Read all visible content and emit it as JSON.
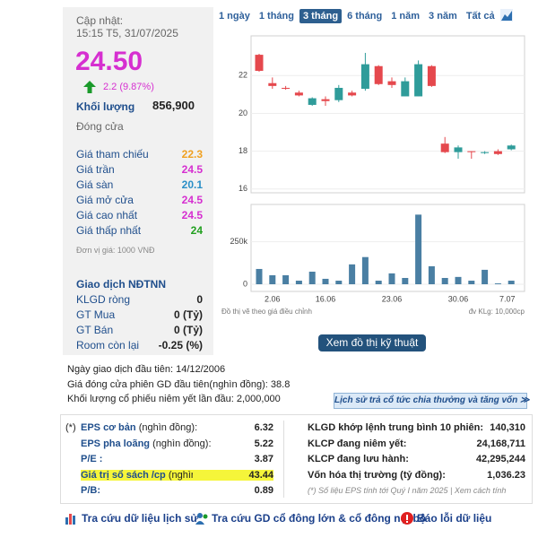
{
  "quote": {
    "updated_label": "Cập nhật:",
    "updated_time": "15:15 T5, 31/07/2025",
    "price": "24.50",
    "change": "2.2 (9.87%)",
    "volume_label": "Khối lượng",
    "volume": "856,900",
    "status": "Đóng cửa",
    "price_rows": [
      {
        "label": "Giá tham chiếu",
        "value": "22.3",
        "color": "#f0a020"
      },
      {
        "label": "Giá trần",
        "value": "24.5",
        "color": "#d62fd0"
      },
      {
        "label": "Giá sàn",
        "value": "20.1",
        "color": "#2a8fc7"
      },
      {
        "label": "Giá mở cửa",
        "value": "24.5",
        "color": "#d62fd0"
      },
      {
        "label": "Giá cao nhất",
        "value": "24.5",
        "color": "#d62fd0"
      },
      {
        "label": "Giá thấp nhất",
        "value": "24",
        "color": "#22a020"
      }
    ],
    "unit_note": "Đơn vị giá: 1000 VNĐ",
    "foreign_title": "Giao dịch NĐTNN",
    "foreign_rows": [
      {
        "label": "KLGD ròng",
        "value": "0"
      },
      {
        "label": "GT Mua",
        "value": "0 (Tỷ)"
      },
      {
        "label": "GT Bán",
        "value": "0 (Tỷ)"
      },
      {
        "label": "Room còn lại",
        "value": "-0.25 (%)"
      }
    ]
  },
  "tabs": [
    "1 ngày",
    "1 tháng",
    "3 tháng",
    "6 tháng",
    "1 năm",
    "3 năm",
    "Tất cả"
  ],
  "active_tab": 2,
  "chart_data": {
    "type": "candlestick",
    "open": [
      23.1,
      21.6,
      21.35,
      21.1,
      20.45,
      20.75,
      20.7,
      21.1,
      21.3,
      22.5,
      21.7,
      20.9,
      20.9,
      22.5,
      18.4,
      17.95,
      18.0,
      17.9,
      18.0,
      18.1
    ],
    "high": [
      23.15,
      21.9,
      21.45,
      21.2,
      20.85,
      20.9,
      21.5,
      21.2,
      23.2,
      22.55,
      21.9,
      21.9,
      22.8,
      22.55,
      18.75,
      18.3,
      18.0,
      18.0,
      18.1,
      18.35
    ],
    "low": [
      22.2,
      21.3,
      21.25,
      20.9,
      20.4,
      20.4,
      20.6,
      20.9,
      21.2,
      21.5,
      21.35,
      20.9,
      20.9,
      21.4,
      17.9,
      17.6,
      17.6,
      17.85,
      17.8,
      18.05
    ],
    "close": [
      22.25,
      21.45,
      21.3,
      20.95,
      20.8,
      20.65,
      21.35,
      20.95,
      22.6,
      21.55,
      21.5,
      21.7,
      22.6,
      21.45,
      17.95,
      18.2,
      17.95,
      17.95,
      17.85,
      18.3
    ],
    "volume": [
      90000,
      53000,
      53000,
      21000,
      74000,
      32000,
      21000,
      117000,
      160000,
      21000,
      64000,
      37000,
      410000,
      106000,
      37000,
      43000,
      21000,
      85000,
      5000,
      21000
    ],
    "ylim": [
      15.8,
      24.1
    ],
    "yticks": [
      16,
      18,
      20,
      22
    ],
    "volume_ylim": [
      0,
      470000
    ],
    "volume_yticks": [
      0,
      {
        "value": 250000,
        "label": "250k"
      }
    ],
    "xtick_labels": [
      "2.06",
      "16.06",
      "23.06",
      "30.06",
      "7.07"
    ],
    "up_color": "#2f9c9a",
    "down_color": "#e5484d",
    "volume_color": "#4a7fa3",
    "grid": true,
    "note": "Đồ thị vẽ theo giá điều chỉnh",
    "volume_unit": "đv KLg: 10,000cp"
  },
  "chart_button": "Xem đồ thị kỹ thuật",
  "info": [
    "Ngày giao dịch đầu tiên: 14/12/2006",
    "Giá đóng cửa phiên GD đầu tiên(nghìn đồng): 38.8",
    "Khối lượng cổ phiếu niêm yết lần đầu: 2,000,000"
  ],
  "dividend_button": "Lịch sử trả cổ tức chia thưởng và tăng vốn ≫",
  "ratios": {
    "marker": "(*)",
    "rows": [
      {
        "label": "EPS cơ bản",
        "unit": "(nghìn đồng):",
        "value": "6.32"
      },
      {
        "label": "EPS pha loãng",
        "unit": "(nghìn đồng):",
        "value": "5.22"
      },
      {
        "label": "P/E :",
        "value": "3.87"
      },
      {
        "label": "Giá trị sổ sách /cp",
        "unit": "(nghìn đồng):",
        "value": "43.44",
        "highlight": true
      },
      {
        "label": "P/B:",
        "value": "0.89"
      }
    ]
  },
  "stats": {
    "rows": [
      {
        "label": "KLGD khớp lệnh trung bình 10 phiên:",
        "value": "140,310"
      },
      {
        "label": "KLCP đang niêm yết:",
        "value": "24,168,711"
      },
      {
        "label": "KLCP đang lưu hành:",
        "value": "42,295,244"
      },
      {
        "label": "Vốn hóa thị trường (tỷ đồng):",
        "value": "1,036.23"
      }
    ],
    "footnote": "(*) Số liệu EPS tính tới Quý I năm 2025 | Xem cách tính"
  },
  "links": [
    "Tra cứu dữ liệu lịch sử",
    "Tra cứu GD cổ đông lớn & cổ đông nội bộ",
    "Báo lỗi dữ liệu"
  ]
}
